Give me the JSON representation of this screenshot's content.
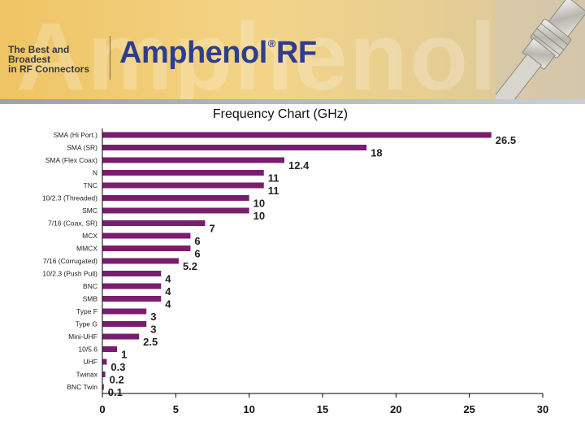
{
  "banner": {
    "watermark": "Amphenol",
    "tagline_line1": "The Best and Broadest",
    "tagline_line2": "in RF Connectors",
    "logo_text": "Amphenol",
    "logo_reg": "®",
    "logo_suffix": "RF"
  },
  "chart_data": {
    "type": "bar",
    "orientation": "horizontal",
    "title": "Frequency Chart (GHz)",
    "xlabel": "",
    "ylabel": "",
    "xlim": [
      0,
      30
    ],
    "xticks": [
      0,
      5,
      10,
      15,
      20,
      25,
      30
    ],
    "bar_color": "#7b1d6f",
    "categories": [
      "SMA (Hi Port.)",
      "SMA (SR)",
      "SMA (Flex Coax)",
      "N",
      "TNC",
      "10/2.3 (Threaded)",
      "SMC",
      "7/16 (Coax, SR)",
      "MCX",
      "MMCX",
      "7/16 (Corrugated)",
      "10/2.3 (Push Pull)",
      "BNC",
      "SMB",
      "Type F",
      "Type G",
      "Mini-UHF",
      "10/5.6",
      "UHF",
      "Twinax",
      "BNC Twin"
    ],
    "values": [
      26.5,
      18,
      12.4,
      11,
      11,
      10,
      10,
      7,
      6,
      6,
      5.2,
      4,
      4,
      4,
      3,
      3,
      2.5,
      1,
      0.3,
      0.2,
      0.1
    ],
    "value_labels": [
      "26.5",
      "18",
      "12.4",
      "11",
      "11",
      "10",
      "10",
      "7",
      "6",
      "6",
      "5.2",
      "4",
      "4",
      "4",
      "3",
      "3",
      "2.5",
      "1",
      "0.3",
      "0.2",
      "0.1"
    ],
    "grid": false,
    "legend": "none"
  }
}
